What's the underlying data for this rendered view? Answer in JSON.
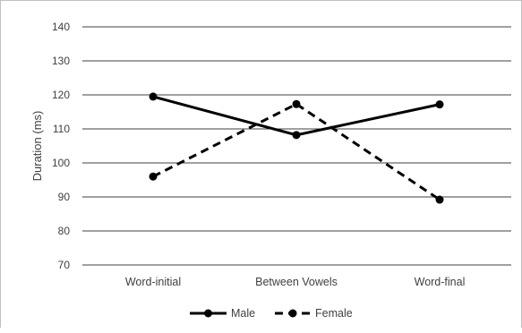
{
  "chart_data": {
    "type": "line",
    "title": "",
    "xlabel": "",
    "ylabel": "Duration (ms)",
    "categories": [
      "Word-initial",
      "Between Vowels",
      "Word-final"
    ],
    "ylim": [
      70,
      140
    ],
    "yticks": [
      70,
      80,
      90,
      100,
      110,
      120,
      130,
      140
    ],
    "grid": true,
    "legend_position": "bottom",
    "series": [
      {
        "name": "Male",
        "values": [
          119.5,
          108.2,
          117.2
        ],
        "line_style": "solid",
        "color": "#000000"
      },
      {
        "name": "Female",
        "values": [
          96.0,
          117.3,
          89.2
        ],
        "line_style": "dashed",
        "color": "#000000"
      }
    ]
  }
}
